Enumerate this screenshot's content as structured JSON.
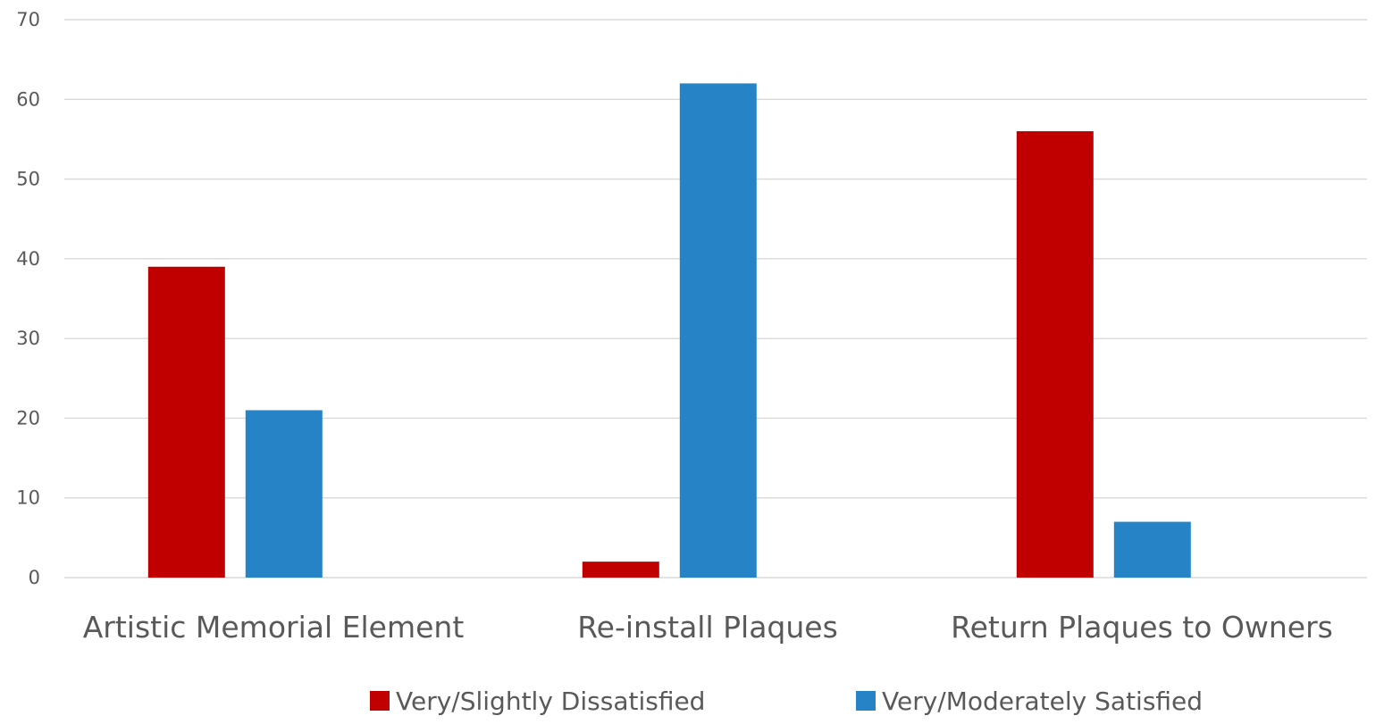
{
  "chart_data": {
    "type": "bar",
    "title": "",
    "xlabel": "",
    "ylabel": "",
    "categories": [
      "Artistic Memorial Element",
      "Re-install Plaques",
      "Return Plaques to Owners"
    ],
    "series": [
      {
        "name": "Very/Slightly Dissatisfied",
        "color": "#c00000",
        "values": [
          39,
          2,
          56
        ]
      },
      {
        "name": "Very/Moderately Satisfied",
        "color": "#2683c6",
        "values": [
          21,
          62,
          7
        ]
      }
    ],
    "ylim": [
      0,
      70
    ],
    "yticks": [
      0,
      10,
      20,
      30,
      40,
      50,
      60,
      70
    ],
    "grid": true,
    "legend_position": "bottom"
  }
}
